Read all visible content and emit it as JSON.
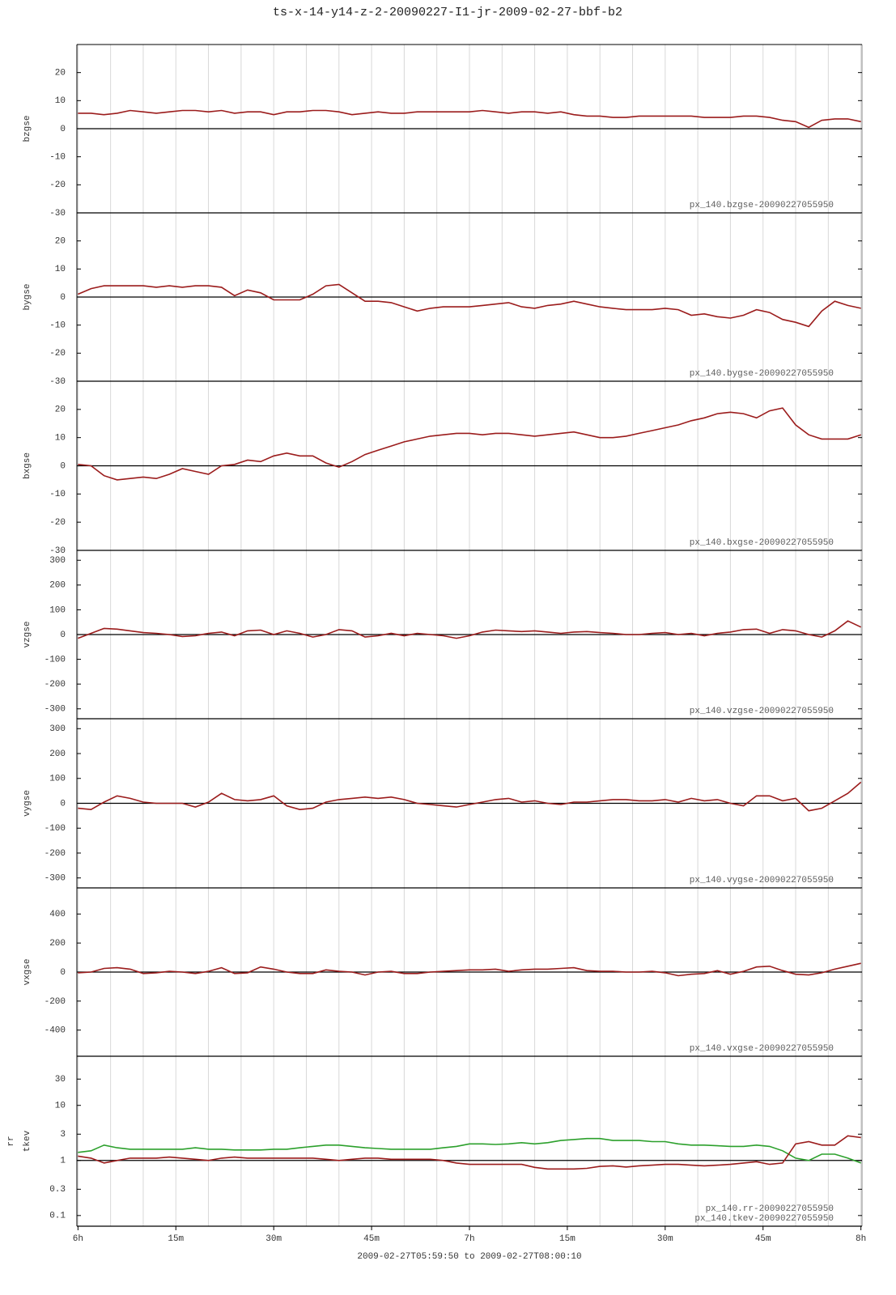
{
  "chart_data": {
    "type": "line",
    "title": "ts-x-14-y14-z-2-20090227-I1-jr-2009-02-27-bbf-b2",
    "xlabel": "2009-02-27T05:59:50 to 2009-02-27T08:00:10",
    "xlim": [
      "05:59:50",
      "08:00:10"
    ],
    "xticks": [
      {
        "value": "06:00",
        "label": "6h"
      },
      {
        "value": "06:15",
        "label": "15m"
      },
      {
        "value": "06:30",
        "label": "30m"
      },
      {
        "value": "06:45",
        "label": "45m"
      },
      {
        "value": "07:00",
        "label": "7h"
      },
      {
        "value": "07:15",
        "label": "15m"
      },
      {
        "value": "07:30",
        "label": "30m"
      },
      {
        "value": "07:45",
        "label": "45m"
      },
      {
        "value": "08:00",
        "label": "8h"
      }
    ],
    "xminorticks": [
      "06:05",
      "06:10",
      "06:20",
      "06:25",
      "06:35",
      "06:40",
      "06:50",
      "06:55",
      "07:05",
      "07:10",
      "07:20",
      "07:25",
      "07:35",
      "07:40",
      "07:50",
      "07:55"
    ],
    "grid": true,
    "x": [
      "06:00",
      "06:02",
      "06:04",
      "06:06",
      "06:08",
      "06:10",
      "06:12",
      "06:14",
      "06:16",
      "06:18",
      "06:20",
      "06:22",
      "06:24",
      "06:26",
      "06:28",
      "06:30",
      "06:32",
      "06:34",
      "06:36",
      "06:38",
      "06:40",
      "06:42",
      "06:44",
      "06:46",
      "06:48",
      "06:50",
      "06:52",
      "06:54",
      "06:56",
      "06:58",
      "07:00",
      "07:02",
      "07:04",
      "07:06",
      "07:08",
      "07:10",
      "07:12",
      "07:14",
      "07:16",
      "07:18",
      "07:20",
      "07:22",
      "07:24",
      "07:26",
      "07:28",
      "07:30",
      "07:32",
      "07:34",
      "07:36",
      "07:38",
      "07:40",
      "07:42",
      "07:44",
      "07:46",
      "07:48",
      "07:50",
      "07:52",
      "07:54",
      "07:56",
      "07:58",
      "08:00"
    ],
    "panels": [
      {
        "ylabel": [
          "bzgse"
        ],
        "ylim": [
          -30,
          30
        ],
        "yticks": [
          -30,
          -20,
          -10,
          0,
          10,
          20
        ],
        "series": [
          {
            "name": "px_140.bzgse-20090227055950",
            "color": "#9b1c1c",
            "values": [
              5.5,
              5.5,
              5,
              5.5,
              6.5,
              6,
              5.5,
              6,
              6.5,
              6.5,
              6,
              6.5,
              5.5,
              6,
              6,
              5,
              6,
              6,
              6.5,
              6.5,
              6,
              5,
              5.5,
              6,
              5.5,
              5.5,
              6,
              6,
              6,
              6,
              6,
              6.5,
              6,
              5.5,
              6,
              6,
              5.5,
              6,
              5,
              4.5,
              4.5,
              4,
              4,
              4.5,
              4.5,
              4.5,
              4.5,
              4.5,
              4,
              4,
              4,
              4.5,
              4.5,
              4,
              3,
              2.5,
              0.5,
              3,
              3.5,
              3.5,
              2.5
            ]
          }
        ]
      },
      {
        "ylabel": [
          "bygse"
        ],
        "ylim": [
          -30,
          30
        ],
        "yticks": [
          -30,
          -20,
          -10,
          0,
          10,
          20
        ],
        "series": [
          {
            "name": "px_140.bygse-20090227055950",
            "color": "#9b1c1c",
            "values": [
              1,
              3,
              4,
              4,
              4,
              4,
              3.5,
              4,
              3.5,
              4,
              4,
              3.5,
              0.5,
              2.5,
              1.5,
              -1,
              -1,
              -1,
              1,
              4,
              4.5,
              1.5,
              -1.5,
              -1.5,
              -2,
              -3.5,
              -5,
              -4,
              -3.5,
              -3.5,
              -3.5,
              -3,
              -2.5,
              -2,
              -3.5,
              -4,
              -3,
              -2.5,
              -1.5,
              -2.5,
              -3.5,
              -4,
              -4.5,
              -4.5,
              -4.5,
              -4,
              -4.5,
              -6.5,
              -6,
              -7,
              -7.5,
              -6.5,
              -4.5,
              -5.5,
              -8,
              -9,
              -10.5,
              -5,
              -1.5,
              -3,
              -4
            ]
          }
        ]
      },
      {
        "ylabel": [
          "bxgse"
        ],
        "ylim": [
          -30,
          30
        ],
        "yticks": [
          -30,
          -20,
          -10,
          0,
          10,
          20
        ],
        "series": [
          {
            "name": "px_140.bxgse-20090227055950",
            "color": "#9b1c1c",
            "values": [
              0.5,
              0,
              -3.5,
              -5,
              -4.5,
              -4,
              -4.5,
              -3,
              -1,
              -2,
              -3,
              0,
              0.5,
              2,
              1.5,
              3.5,
              4.5,
              3.5,
              3.5,
              1,
              -0.5,
              1.5,
              4,
              5.5,
              7,
              8.5,
              9.5,
              10.5,
              11,
              11.5,
              11.5,
              11,
              11.5,
              11.5,
              11,
              10.5,
              11,
              11.5,
              12,
              11,
              10,
              10,
              10.5,
              11.5,
              12.5,
              13.5,
              14.5,
              16,
              17,
              18.5,
              19,
              18.5,
              17,
              19.5,
              20.5,
              14.5,
              11,
              9.5,
              9.5,
              9.5,
              11
            ]
          }
        ]
      },
      {
        "ylabel": [
          "vzgse"
        ],
        "ylim": [
          -340,
          340
        ],
        "yticks": [
          -300,
          -200,
          -100,
          0,
          100,
          200,
          300
        ],
        "series": [
          {
            "name": "px_140.vzgse-20090227055950",
            "color": "#9b1c1c",
            "values": [
              -15,
              5,
              25,
              22,
              15,
              8,
              5,
              0,
              -8,
              -5,
              5,
              10,
              -5,
              15,
              18,
              0,
              15,
              5,
              -10,
              0,
              20,
              15,
              -10,
              -5,
              5,
              -5,
              5,
              0,
              -5,
              -15,
              -5,
              10,
              18,
              15,
              12,
              15,
              10,
              5,
              10,
              12,
              8,
              5,
              0,
              0,
              5,
              8,
              0,
              5,
              -5,
              5,
              10,
              20,
              22,
              5,
              20,
              15,
              0,
              -10,
              15,
              55,
              30
            ]
          }
        ]
      },
      {
        "ylabel": [
          "vygse"
        ],
        "ylim": [
          -340,
          340
        ],
        "yticks": [
          -300,
          -200,
          -100,
          0,
          100,
          200,
          300
        ],
        "series": [
          {
            "name": "px_140.vygse-20090227055950",
            "color": "#9b1c1c",
            "values": [
              -20,
              -25,
              5,
              30,
              20,
              5,
              0,
              0,
              0,
              -15,
              5,
              40,
              15,
              10,
              15,
              30,
              -10,
              -25,
              -20,
              5,
              15,
              20,
              25,
              20,
              25,
              15,
              0,
              -5,
              -10,
              -15,
              -5,
              5,
              15,
              20,
              5,
              10,
              0,
              -5,
              5,
              5,
              10,
              15,
              15,
              10,
              10,
              15,
              5,
              20,
              10,
              15,
              0,
              -10,
              30,
              30,
              10,
              20,
              -30,
              -20,
              10,
              40,
              85
            ]
          }
        ]
      },
      {
        "ylabel": [
          "vxgse"
        ],
        "ylim": [
          -580,
          580
        ],
        "yticks": [
          -400,
          -200,
          0,
          200,
          400
        ],
        "series": [
          {
            "name": "px_140.vxgse-20090227055950",
            "color": "#9b1c1c",
            "values": [
              -5,
              0,
              25,
              30,
              20,
              -10,
              -5,
              5,
              0,
              -10,
              5,
              30,
              -10,
              -5,
              35,
              20,
              0,
              -10,
              -10,
              15,
              5,
              0,
              -20,
              0,
              5,
              -10,
              -10,
              0,
              5,
              10,
              15,
              15,
              20,
              5,
              15,
              20,
              20,
              25,
              30,
              10,
              5,
              5,
              0,
              0,
              5,
              -5,
              -25,
              -15,
              -10,
              10,
              -15,
              5,
              35,
              40,
              10,
              -15,
              -20,
              -5,
              20,
              40,
              60
            ]
          }
        ]
      },
      {
        "ylabel": [
          "rr",
          "tkev"
        ],
        "log": true,
        "ylim": [
          0.064,
          78
        ],
        "yticks": [
          0.1,
          0.3,
          1,
          3,
          10,
          30
        ],
        "series": [
          {
            "name": "px_140.rr-20090227055950",
            "color": "#2ca02c",
            "values": [
              1.4,
              1.5,
              1.9,
              1.7,
              1.6,
              1.6,
              1.6,
              1.6,
              1.6,
              1.7,
              1.6,
              1.6,
              1.55,
              1.55,
              1.55,
              1.6,
              1.6,
              1.7,
              1.8,
              1.9,
              1.9,
              1.8,
              1.7,
              1.65,
              1.6,
              1.6,
              1.6,
              1.6,
              1.7,
              1.8,
              2.0,
              2.0,
              1.95,
              2.0,
              2.1,
              2.0,
              2.1,
              2.3,
              2.4,
              2.5,
              2.5,
              2.3,
              2.3,
              2.3,
              2.2,
              2.2,
              2.0,
              1.9,
              1.9,
              1.85,
              1.8,
              1.8,
              1.9,
              1.8,
              1.5,
              1.1,
              1.0,
              1.3,
              1.3,
              1.1,
              0.9
            ]
          },
          {
            "name": "px_140.tkev-20090227055950",
            "color": "#9b1c1c",
            "values": [
              1.2,
              1.1,
              0.9,
              1.0,
              1.1,
              1.1,
              1.1,
              1.15,
              1.1,
              1.05,
              1.0,
              1.1,
              1.15,
              1.1,
              1.1,
              1.1,
              1.1,
              1.1,
              1.1,
              1.05,
              1.0,
              1.05,
              1.1,
              1.1,
              1.05,
              1.05,
              1.05,
              1.05,
              1.0,
              0.9,
              0.85,
              0.85,
              0.85,
              0.85,
              0.85,
              0.75,
              0.7,
              0.7,
              0.7,
              0.72,
              0.78,
              0.8,
              0.76,
              0.8,
              0.82,
              0.85,
              0.85,
              0.82,
              0.8,
              0.82,
              0.85,
              0.9,
              0.95,
              0.85,
              0.9,
              2.0,
              2.2,
              1.9,
              1.9,
              2.8,
              2.6
            ]
          }
        ]
      }
    ]
  }
}
